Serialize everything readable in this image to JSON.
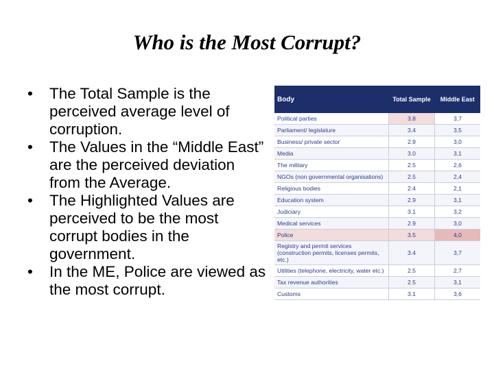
{
  "title": "Who is the Most Corrupt?",
  "bullets": [
    "The Total Sample is the perceived average level of corruption.",
    "The Values in the “Middle East” are the perceived deviation from the Average.",
    "The Highlighted Values are perceived to be the most corrupt bodies in the government.",
    "In the ME, Police are viewed as the most corrupt."
  ],
  "table": {
    "header": [
      "Body",
      "Total Sample",
      "Middle East"
    ],
    "rows": [
      [
        "Political parties",
        "3.8",
        "3,7"
      ],
      [
        "Parliament/ legislature",
        "3.4",
        "3,5"
      ],
      [
        "Business/ private sector",
        "2.9",
        "3,0"
      ],
      [
        "Media",
        "3.0",
        "3,1"
      ],
      [
        "The military",
        "2.5",
        "2,6"
      ],
      [
        "NGOs (non governmental organisations)",
        "2.5",
        "2,4"
      ],
      [
        "Religious bodies",
        "2.4",
        "2,1"
      ],
      [
        "Education system",
        "2.9",
        "3,1"
      ],
      [
        "Judiciary",
        "3.1",
        "3,2"
      ],
      [
        "Medical services",
        "2.9",
        "3,0"
      ],
      [
        "Police",
        "3.5",
        "4,0"
      ],
      [
        "Registry and permit services (construction permits, licenses permits, etc.)",
        "3.4",
        "3,7"
      ],
      [
        "Utilities (telephone, electricity, water etc.)",
        "2.5",
        "2,7"
      ],
      [
        "Tax revenue authorities",
        "2.5",
        "3,1"
      ],
      [
        "Customs",
        "3.1",
        "3,6"
      ]
    ]
  }
}
